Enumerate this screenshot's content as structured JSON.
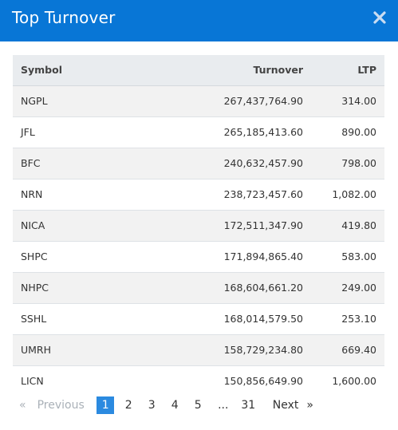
{
  "modal": {
    "title": "Top Turnover",
    "close_icon": "close-icon"
  },
  "table": {
    "headers": {
      "symbol": "Symbol",
      "turnover": "Turnover",
      "ltp": "LTP"
    },
    "rows": [
      {
        "symbol": "NGPL",
        "turnover": "267,437,764.90",
        "ltp": "314.00"
      },
      {
        "symbol": "JFL",
        "turnover": "265,185,413.60",
        "ltp": "890.00"
      },
      {
        "symbol": "BFC",
        "turnover": "240,632,457.90",
        "ltp": "798.00"
      },
      {
        "symbol": "NRN",
        "turnover": "238,723,457.60",
        "ltp": "1,082.00"
      },
      {
        "symbol": "NICA",
        "turnover": "172,511,347.90",
        "ltp": "419.80"
      },
      {
        "symbol": "SHPC",
        "turnover": "171,894,865.40",
        "ltp": "583.00"
      },
      {
        "symbol": "NHPC",
        "turnover": "168,604,661.20",
        "ltp": "249.00"
      },
      {
        "symbol": "SSHL",
        "turnover": "168,014,579.50",
        "ltp": "253.10"
      },
      {
        "symbol": "UMRH",
        "turnover": "158,729,234.80",
        "ltp": "669.40"
      },
      {
        "symbol": "LICN",
        "turnover": "150,856,649.90",
        "ltp": "1,600.00"
      }
    ]
  },
  "pagination": {
    "prev_arrow": "«",
    "prev_label": "Previous",
    "pages": [
      "1",
      "2",
      "3",
      "4",
      "5"
    ],
    "ellipsis": "...",
    "last_page": "31",
    "next_label": "Next",
    "next_arrow": "»",
    "active_page": "1"
  },
  "colors": {
    "header_bg": "#0876d6",
    "active_page_bg": "#2b8ae0",
    "disabled_text": "#aab1b8"
  }
}
